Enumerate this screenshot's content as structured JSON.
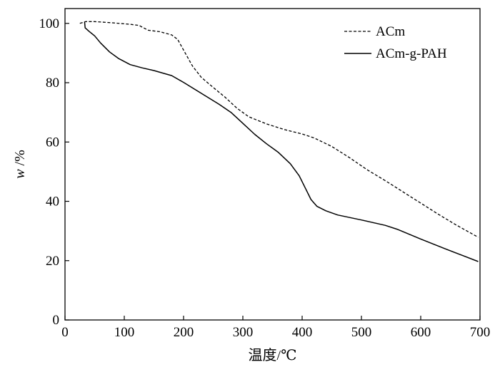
{
  "chart_data": {
    "type": "line",
    "title": "",
    "xlabel": "温度/℃",
    "ylabel_italic": "w",
    "ylabel_rest": " /%",
    "xlim": [
      0,
      700
    ],
    "ylim": [
      0,
      105
    ],
    "x_ticks": [
      0,
      100,
      200,
      300,
      400,
      500,
      600,
      700
    ],
    "y_ticks": [
      0,
      20,
      40,
      60,
      80,
      100
    ],
    "grid": false,
    "legend_position": "top-right",
    "series": [
      {
        "name": "ACm",
        "style": "dashed",
        "color": "#000000",
        "points": [
          [
            25,
            100
          ],
          [
            35,
            100.6
          ],
          [
            50,
            100.6
          ],
          [
            80,
            100.2
          ],
          [
            110,
            99.7
          ],
          [
            125,
            99.3
          ],
          [
            140,
            97.7
          ],
          [
            160,
            97.2
          ],
          [
            180,
            96.1
          ],
          [
            190,
            94.6
          ],
          [
            200,
            91.0
          ],
          [
            215,
            85.6
          ],
          [
            230,
            81.8
          ],
          [
            250,
            78.4
          ],
          [
            270,
            75.1
          ],
          [
            290,
            71.4
          ],
          [
            310,
            68.5
          ],
          [
            340,
            66.1
          ],
          [
            370,
            64.2
          ],
          [
            400,
            62.7
          ],
          [
            420,
            61.4
          ],
          [
            450,
            58.5
          ],
          [
            480,
            54.7
          ],
          [
            510,
            50.6
          ],
          [
            540,
            47.0
          ],
          [
            570,
            43.2
          ],
          [
            600,
            39.4
          ],
          [
            630,
            35.6
          ],
          [
            660,
            32.0
          ],
          [
            697,
            27.9
          ]
        ]
      },
      {
        "name": "ACm-g-PAH",
        "style": "solid",
        "color": "#000000",
        "points": [
          [
            33,
            100.5
          ],
          [
            34,
            98.5
          ],
          [
            40,
            97.4
          ],
          [
            50,
            95.8
          ],
          [
            60,
            93.4
          ],
          [
            75,
            90.4
          ],
          [
            90,
            88.2
          ],
          [
            110,
            86.1
          ],
          [
            130,
            85.0
          ],
          [
            150,
            84.1
          ],
          [
            180,
            82.4
          ],
          [
            200,
            80.1
          ],
          [
            230,
            76.4
          ],
          [
            260,
            72.7
          ],
          [
            280,
            70.0
          ],
          [
            300,
            66.3
          ],
          [
            320,
            62.6
          ],
          [
            340,
            59.4
          ],
          [
            360,
            56.5
          ],
          [
            380,
            52.7
          ],
          [
            395,
            48.6
          ],
          [
            405,
            44.6
          ],
          [
            415,
            40.6
          ],
          [
            425,
            38.3
          ],
          [
            440,
            36.8
          ],
          [
            460,
            35.4
          ],
          [
            500,
            33.7
          ],
          [
            540,
            31.9
          ],
          [
            560,
            30.6
          ],
          [
            600,
            27.3
          ],
          [
            640,
            24.1
          ],
          [
            670,
            21.8
          ],
          [
            697,
            19.7
          ]
        ]
      }
    ]
  }
}
